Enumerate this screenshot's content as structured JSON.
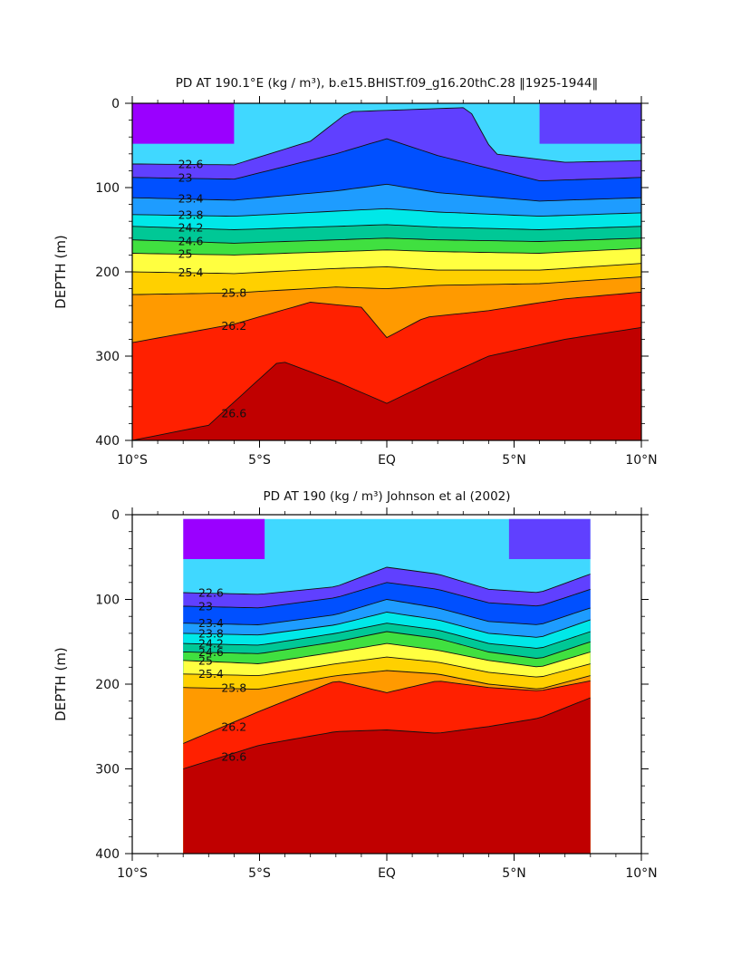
{
  "chart_data": [
    {
      "type": "contour",
      "title": "PD AT 190.1°E (kg / m³), b.e15.BHIST.f09_g16.20thC.28 ‖1925-1944‖",
      "ylabel": "DEPTH (m)",
      "xlim": [
        -10,
        10
      ],
      "ylim": [
        400,
        0
      ],
      "y_inverted": true,
      "x_tick_labels": [
        "10°S",
        "5°S",
        "EQ",
        "5°N",
        "10°N"
      ],
      "x_tick_values": [
        -10,
        -5,
        0,
        5,
        10
      ],
      "y_tick_labels": [
        "0",
        "100",
        "200",
        "300",
        "400"
      ],
      "y_tick_values": [
        0,
        100,
        200,
        300,
        400
      ],
      "data_extent_x": [
        -10,
        10
      ],
      "contour_interval": 0.2,
      "levels_labeled": [
        "22.6",
        "23",
        "23.4",
        "23.8",
        "24.2",
        "24.6",
        "25",
        "25.4",
        "25.8",
        "26.2",
        "26.6"
      ],
      "contours": [
        {
          "level": 22.6,
          "points": [
            [
              -10,
              72
            ],
            [
              -6,
              73
            ],
            [
              -3,
              45
            ],
            [
              -1.5,
              10
            ],
            [
              3.2,
              5
            ],
            [
              4.2,
              60
            ],
            [
              7,
              70
            ],
            [
              10,
              68
            ]
          ]
        },
        {
          "level": 23.0,
          "points": [
            [
              -10,
              88
            ],
            [
              -6,
              90
            ],
            [
              -2,
              60
            ],
            [
              0,
              42
            ],
            [
              2,
              62
            ],
            [
              6,
              92
            ],
            [
              10,
              88
            ]
          ]
        },
        {
          "level": 23.4,
          "points": [
            [
              -10,
              112
            ],
            [
              -6,
              115
            ],
            [
              -2,
              104
            ],
            [
              0,
              96
            ],
            [
              2,
              106
            ],
            [
              6,
              116
            ],
            [
              10,
              112
            ]
          ]
        },
        {
          "level": 23.8,
          "points": [
            [
              -10,
              132
            ],
            [
              -6,
              134
            ],
            [
              -2,
              128
            ],
            [
              0,
              125
            ],
            [
              2,
              129
            ],
            [
              6,
              134
            ],
            [
              10,
              130
            ]
          ]
        },
        {
          "level": 24.2,
          "points": [
            [
              -10,
              146
            ],
            [
              -6,
              150
            ],
            [
              -2,
              146
            ],
            [
              0,
              144
            ],
            [
              2,
              147
            ],
            [
              6,
              150
            ],
            [
              10,
              146
            ]
          ]
        },
        {
          "level": 24.6,
          "points": [
            [
              -10,
              162
            ],
            [
              -6,
              166
            ],
            [
              -2,
              162
            ],
            [
              0,
              160
            ],
            [
              2,
              162
            ],
            [
              6,
              164
            ],
            [
              10,
              160
            ]
          ]
        },
        {
          "level": 25.0,
          "points": [
            [
              -10,
              178
            ],
            [
              -6,
              180
            ],
            [
              -2,
              176
            ],
            [
              0,
              174
            ],
            [
              2,
              176
            ],
            [
              6,
              178
            ],
            [
              10,
              172
            ]
          ]
        },
        {
          "level": 25.4,
          "points": [
            [
              -10,
              200
            ],
            [
              -6,
              202
            ],
            [
              -2,
              196
            ],
            [
              0,
              194
            ],
            [
              2,
              198
            ],
            [
              6,
              198
            ],
            [
              10,
              190
            ]
          ]
        },
        {
          "level": 25.8,
          "points": [
            [
              -10,
              227
            ],
            [
              -6,
              225
            ],
            [
              -2,
              218
            ],
            [
              0,
              220
            ],
            [
              2,
              216
            ],
            [
              6,
              214
            ],
            [
              10,
              206
            ]
          ]
        },
        {
          "level": 26.2,
          "points": [
            [
              -10,
              284
            ],
            [
              -6,
              262
            ],
            [
              -3,
              236
            ],
            [
              -1,
              242
            ],
            [
              0,
              278
            ],
            [
              1.5,
              254
            ],
            [
              4,
              246
            ],
            [
              7,
              232
            ],
            [
              10,
              224
            ]
          ]
        },
        {
          "level": 26.6,
          "points": [
            [
              -10,
              400
            ],
            [
              -7,
              382
            ],
            [
              -4.2,
              305
            ],
            [
              -2,
              330
            ],
            [
              0,
              356
            ],
            [
              1.8,
              330
            ],
            [
              4,
              300
            ],
            [
              7,
              280
            ],
            [
              10,
              266
            ]
          ]
        }
      ]
    },
    {
      "type": "contour",
      "title": "PD AT 190 (kg / m³) Johnson et al (2002)",
      "ylabel": "DEPTH (m)",
      "xlim": [
        -10,
        10
      ],
      "ylim": [
        400,
        0
      ],
      "y_inverted": true,
      "x_tick_labels": [
        "10°S",
        "5°S",
        "EQ",
        "5°N",
        "10°N"
      ],
      "x_tick_values": [
        -10,
        -5,
        0,
        5,
        10
      ],
      "y_tick_labels": [
        "0",
        "100",
        "200",
        "300",
        "400"
      ],
      "y_tick_values": [
        0,
        100,
        200,
        300,
        400
      ],
      "data_extent_x": [
        -8,
        8
      ],
      "data_extent_y": [
        5,
        400
      ],
      "contour_interval": 0.2,
      "levels_labeled": [
        "22.6",
        "23",
        "23.4",
        "23.8",
        "24.2",
        "24.6",
        "25",
        "25.4",
        "25.8",
        "26.2",
        "26.6"
      ],
      "contours": [
        {
          "level": 22.6,
          "points": [
            [
              -8,
              92
            ],
            [
              -5,
              94
            ],
            [
              -2,
              85
            ],
            [
              0,
              62
            ],
            [
              2,
              70
            ],
            [
              4,
              88
            ],
            [
              6,
              92
            ],
            [
              8,
              70
            ]
          ]
        },
        {
          "level": 23.0,
          "points": [
            [
              -8,
              108
            ],
            [
              -5,
              110
            ],
            [
              -2,
              98
            ],
            [
              0,
              80
            ],
            [
              2,
              88
            ],
            [
              4,
              104
            ],
            [
              6,
              108
            ],
            [
              8,
              88
            ]
          ]
        },
        {
          "level": 23.4,
          "points": [
            [
              -8,
              128
            ],
            [
              -5,
              130
            ],
            [
              -2,
              118
            ],
            [
              0,
              100
            ],
            [
              2,
              110
            ],
            [
              4,
              126
            ],
            [
              6,
              130
            ],
            [
              8,
              110
            ]
          ]
        },
        {
          "level": 23.8,
          "points": [
            [
              -8,
              140
            ],
            [
              -5,
              142
            ],
            [
              -2,
              130
            ],
            [
              0,
              115
            ],
            [
              2,
              124
            ],
            [
              4,
              140
            ],
            [
              6,
              145
            ],
            [
              8,
              124
            ]
          ]
        },
        {
          "level": 24.2,
          "points": [
            [
              -8,
              152
            ],
            [
              -5,
              154
            ],
            [
              -2,
              140
            ],
            [
              0,
              128
            ],
            [
              2,
              136
            ],
            [
              4,
              152
            ],
            [
              6,
              158
            ],
            [
              8,
              138
            ]
          ]
        },
        {
          "level": 24.6,
          "points": [
            [
              -8,
              162
            ],
            [
              -5,
              164
            ],
            [
              -2,
              150
            ],
            [
              0,
              138
            ],
            [
              2,
              146
            ],
            [
              4,
              162
            ],
            [
              6,
              170
            ],
            [
              8,
              150
            ]
          ]
        },
        {
          "level": 25.0,
          "points": [
            [
              -8,
              172
            ],
            [
              -5,
              176
            ],
            [
              -2,
              162
            ],
            [
              0,
              152
            ],
            [
              2,
              160
            ],
            [
              4,
              172
            ],
            [
              6,
              180
            ],
            [
              8,
              162
            ]
          ]
        },
        {
          "level": 25.4,
          "points": [
            [
              -8,
              188
            ],
            [
              -5,
              190
            ],
            [
              -2,
              176
            ],
            [
              0,
              168
            ],
            [
              2,
              174
            ],
            [
              4,
              186
            ],
            [
              6,
              192
            ],
            [
              8,
              176
            ]
          ]
        },
        {
          "level": 25.8,
          "points": [
            [
              -8,
              204
            ],
            [
              -5,
              206
            ],
            [
              -2,
              190
            ],
            [
              0,
              184
            ],
            [
              2,
              188
            ],
            [
              4,
              200
            ],
            [
              6,
              206
            ],
            [
              8,
              190
            ]
          ]
        },
        {
          "level": 26.2,
          "points": [
            [
              -8,
              270
            ],
            [
              -5,
              232
            ],
            [
              -2,
              196
            ],
            [
              0,
              210
            ],
            [
              2,
              196
            ],
            [
              4,
              204
            ],
            [
              6,
              208
            ],
            [
              8,
              196
            ]
          ]
        },
        {
          "level": 26.6,
          "points": [
            [
              -8,
              300
            ],
            [
              -5,
              272
            ],
            [
              -2,
              256
            ],
            [
              0,
              254
            ],
            [
              2,
              258
            ],
            [
              4,
              250
            ],
            [
              6,
              240
            ],
            [
              8,
              216
            ]
          ]
        }
      ]
    }
  ],
  "legend_colors_dark_to_light": [
    "#c00000",
    "#ff2000",
    "#ff6400",
    "#ff9a00",
    "#ffd000",
    "#ffff40",
    "#b4ff20",
    "#40e040",
    "#00c896",
    "#00e8e8",
    "#40d8ff",
    "#1e9cff",
    "#0050ff",
    "#6040ff",
    "#9a00ff",
    "#c800e8"
  ]
}
